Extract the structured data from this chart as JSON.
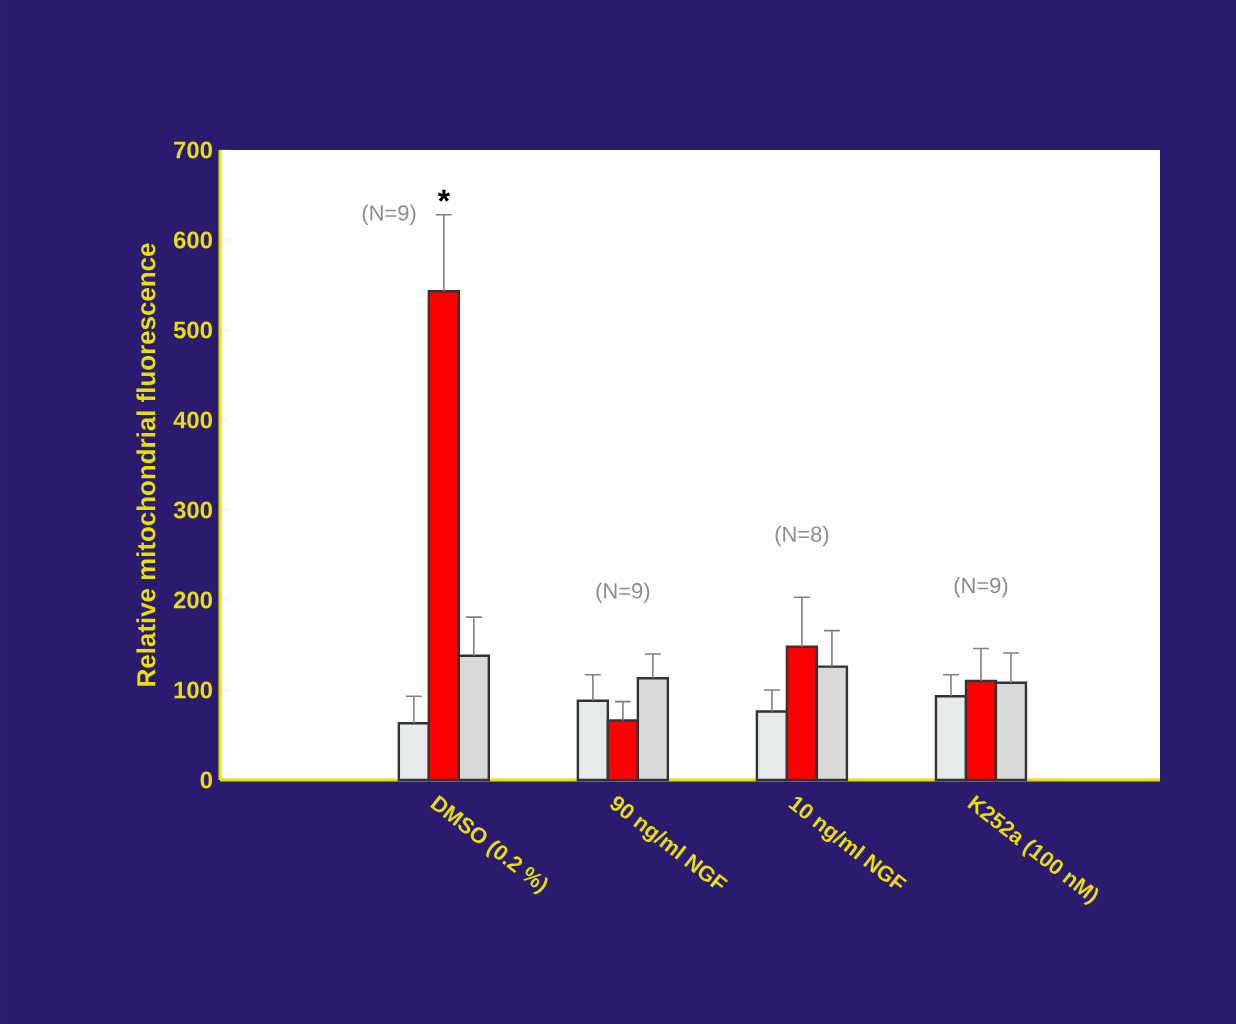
{
  "chart_data": {
    "type": "bar",
    "ylabel": "Relative mitochondrial fluorescence",
    "categories": [
      "DMSO (0.2 %)",
      "90 ng/ml NGF",
      "10 ng/ml NGF",
      "K252a (100 nM)"
    ],
    "series": [
      {
        "color": "#e6eaea",
        "values": [
          63,
          88,
          76,
          93
        ],
        "errors": [
          [
            63,
            93
          ],
          [
            88,
            117
          ],
          [
            76,
            100
          ],
          [
            93,
            117
          ]
        ]
      },
      {
        "color": "#ff0000",
        "values": [
          543,
          66,
          148,
          110
        ],
        "errors": [
          [
            543,
            628
          ],
          [
            66,
            87
          ],
          [
            148,
            203
          ],
          [
            110,
            146
          ]
        ]
      },
      {
        "color": "#d9d9d9",
        "values": [
          138,
          113,
          126,
          108
        ],
        "errors": [
          [
            138,
            181
          ],
          [
            113,
            140
          ],
          [
            126,
            166
          ],
          [
            108,
            141
          ]
        ]
      }
    ],
    "ylim": [
      0,
      700
    ],
    "yticks": [
      0,
      100,
      200,
      300,
      400,
      500,
      600,
      700
    ],
    "annotations": [
      "(N=9)",
      "(N=9)",
      "(N=8)",
      "(N=9)",
      "*"
    ]
  }
}
